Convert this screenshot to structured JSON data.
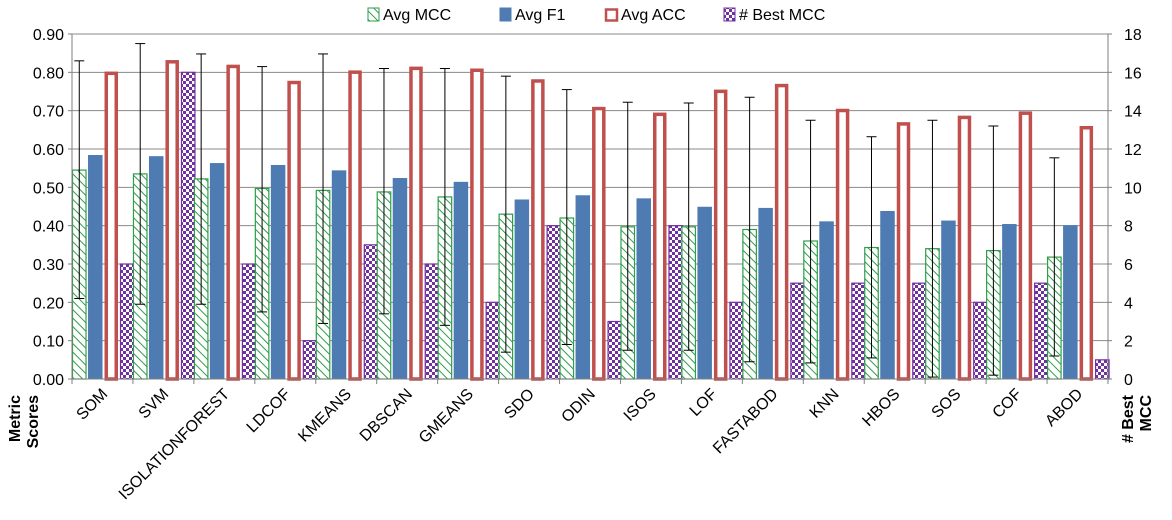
{
  "chart_data": {
    "type": "bar",
    "categories": [
      "SOM",
      "SVM",
      "ISOLATIONFOREST",
      "LDCOF",
      "KMEANS",
      "DBSCAN",
      "GMEANS",
      "SDO",
      "ODIN",
      "ISOS",
      "LOF",
      "FASTABOD",
      "KNN",
      "HBOS",
      "SOS",
      "COF",
      "ABOD"
    ],
    "series": [
      {
        "name": "Avg MCC",
        "axis": "left",
        "color": "#2e9e48",
        "pattern": "hatch-green",
        "values": [
          0.545,
          0.535,
          0.522,
          0.497,
          0.492,
          0.488,
          0.475,
          0.43,
          0.42,
          0.397,
          0.397,
          0.39,
          0.36,
          0.343,
          0.34,
          0.335,
          0.318
        ],
        "error_low": [
          0.21,
          0.195,
          0.195,
          0.175,
          0.145,
          0.17,
          0.14,
          0.07,
          0.09,
          0.075,
          0.075,
          0.045,
          0.042,
          0.055,
          0.005,
          0.01,
          0.06
        ],
        "error_high": [
          0.83,
          0.875,
          0.848,
          0.815,
          0.848,
          0.81,
          0.81,
          0.79,
          0.755,
          0.722,
          0.72,
          0.735,
          0.675,
          0.632,
          0.675,
          0.66,
          0.577
        ]
      },
      {
        "name": "Avg F1",
        "axis": "left",
        "color": "#4f7bb3",
        "pattern": "solid",
        "values": [
          0.583,
          0.58,
          0.562,
          0.557,
          0.543,
          0.523,
          0.513,
          0.467,
          0.478,
          0.47,
          0.448,
          0.445,
          0.41,
          0.437,
          0.412,
          0.403,
          0.4
        ]
      },
      {
        "name": "Avg ACC",
        "axis": "left",
        "color": "#c0504d",
        "pattern": "outline",
        "values": [
          0.802,
          0.832,
          0.82,
          0.778,
          0.805,
          0.815,
          0.81,
          0.782,
          0.71,
          0.695,
          0.755,
          0.77,
          0.705,
          0.67,
          0.687,
          0.698,
          0.66
        ]
      },
      {
        "name": "# Best MCC",
        "axis": "right",
        "color": "#7030a0",
        "pattern": "checker",
        "values": [
          6,
          16,
          6,
          2,
          7,
          6,
          4,
          8,
          3,
          8,
          4,
          5,
          5,
          5,
          4,
          5,
          1
        ]
      }
    ],
    "y_left": {
      "min": 0,
      "max": 0.9,
      "step": 0.1,
      "ticks": [
        "0.00",
        "0.10",
        "0.20",
        "0.30",
        "0.40",
        "0.50",
        "0.60",
        "0.70",
        "0.80",
        "0.90"
      ]
    },
    "y_right": {
      "min": 0,
      "max": 18,
      "step": 2,
      "ticks": [
        "0",
        "2",
        "4",
        "6",
        "8",
        "10",
        "12",
        "14",
        "16",
        "18"
      ]
    },
    "ylabel_left_lines": [
      "Metric",
      "Scores"
    ],
    "ylabel_right_lines": [
      "# Best",
      "MCC"
    ],
    "legend_position": "top-center",
    "grid": "horizontal"
  }
}
